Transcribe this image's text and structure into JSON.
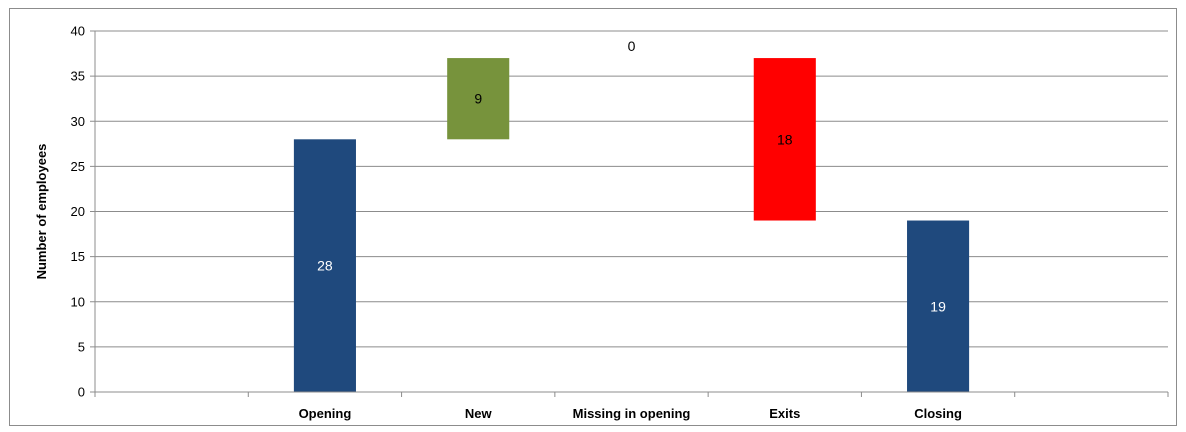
{
  "chart_data": {
    "type": "bar",
    "subtype": "waterfall",
    "title": "",
    "xlabel": "",
    "ylabel": "Number of employees",
    "ylim": [
      0,
      40
    ],
    "yticks": [
      0,
      5,
      10,
      15,
      20,
      25,
      30,
      35,
      40
    ],
    "grid": true,
    "legend": "none",
    "slots": [
      "",
      "Opening",
      "New",
      "Missing in opening",
      "Exits",
      "Closing",
      ""
    ],
    "categories": [
      "Opening",
      "New",
      "Missing in opening",
      "Exits",
      "Closing"
    ],
    "bars": [
      {
        "category": "Opening",
        "base": 0,
        "top": 28,
        "value": 28,
        "label": "28",
        "color": "#1f497d",
        "label_color": "#ffffff"
      },
      {
        "category": "New",
        "base": 28,
        "top": 37,
        "value": 9,
        "label": "9",
        "color": "#77933c",
        "label_color": "#000000"
      },
      {
        "category": "Missing in opening",
        "base": 37,
        "top": 37,
        "value": 0,
        "label": "0",
        "color": "#ffffff",
        "label_color": "#000000"
      },
      {
        "category": "Exits",
        "base": 19,
        "top": 37,
        "value": 18,
        "label": "18",
        "color": "#ff0000",
        "label_color": "#000000"
      },
      {
        "category": "Closing",
        "base": 0,
        "top": 19,
        "value": 19,
        "label": "19",
        "color": "#1f497d",
        "label_color": "#ffffff"
      }
    ],
    "colors": {
      "gridline": "#8c8c8c",
      "axis": "#8c8c8c"
    }
  }
}
